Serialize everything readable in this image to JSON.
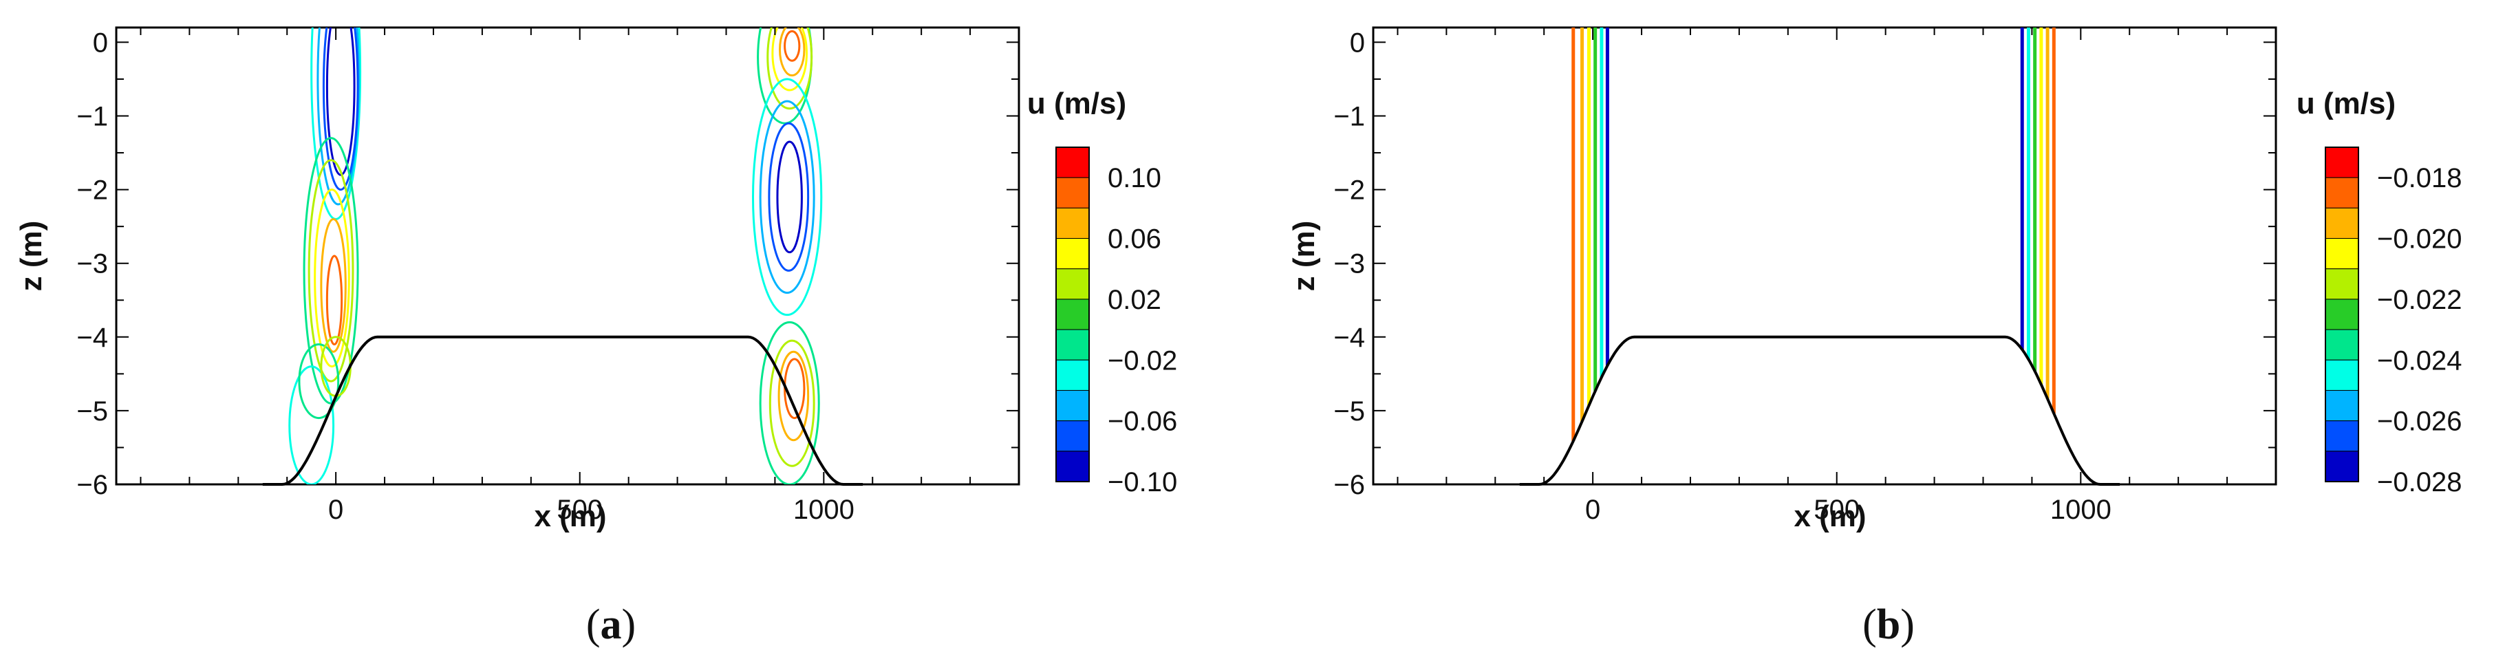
{
  "panels": [
    {
      "caption_open": "(",
      "caption_letter": "a",
      "caption_close": ")",
      "colorbar": {
        "title": "u (m/s)",
        "tick_labels": [
          "0.10",
          "0.06",
          "0.02",
          "−0.02",
          "−0.06",
          "−0.10"
        ]
      }
    },
    {
      "caption_open": "(",
      "caption_letter": "b",
      "caption_close": ")",
      "colorbar": {
        "title": "u (m/s)",
        "tick_labels": [
          "−0.018",
          "−0.020",
          "−0.022",
          "−0.024",
          "−0.026",
          "−0.028"
        ]
      }
    }
  ],
  "colors": {
    "levels": [
      "#0000c8",
      "#0050ff",
      "#00b4ff",
      "#00ffe6",
      "#00e68c",
      "#28cc28",
      "#b4f000",
      "#ffff00",
      "#ffb400",
      "#ff6400",
      "#ff0000"
    ],
    "outline": "#000000",
    "bathymetry": "#000000"
  },
  "chart_data": [
    {
      "type": "contour",
      "xlabel": "x (m)",
      "ylabel": "z (m)",
      "xlim": [
        -450,
        1400
      ],
      "ylim": [
        -6,
        0.2
      ],
      "xticks": [
        0,
        500,
        1000
      ],
      "yticks": [
        0,
        -1,
        -2,
        -3,
        -4,
        -5,
        -6
      ],
      "colorbar_levels": [
        0.1,
        0.06,
        0.02,
        -0.02,
        -0.06,
        -0.1
      ],
      "bathymetry": {
        "crest_depth": -4,
        "crest_x": [
          85,
          845
        ],
        "toe_x": [
          -110,
          1040
        ],
        "base_depth": -6
      },
      "features": [
        {
          "x": 0,
          "z_range": [
            -2.0,
            0
          ],
          "u_min": -0.1,
          "note": "negative core near surface at left slope"
        },
        {
          "x": 0,
          "z_range": [
            -4.0,
            -2.0
          ],
          "u_max": 0.1,
          "note": "positive core at left slope"
        },
        {
          "x": 920,
          "z_range": [
            -1.0,
            0
          ],
          "u_max": 0.1,
          "note": "positive core near surface at right slope"
        },
        {
          "x": 920,
          "z_range": [
            -3.5,
            -1.0
          ],
          "u_min": -0.1,
          "note": "negative core at right slope"
        },
        {
          "x": 920,
          "z_range": [
            -5.5,
            -4.0
          ],
          "u_max": 0.1,
          "note": "positive core near bottom at right slope"
        }
      ]
    },
    {
      "type": "contour",
      "xlabel": "x (m)",
      "ylabel": "z (m)",
      "xlim": [
        -450,
        1400
      ],
      "ylim": [
        -6,
        0.2
      ],
      "xticks": [
        0,
        500,
        1000
      ],
      "yticks": [
        0,
        -1,
        -2,
        -3,
        -4,
        -5,
        -6
      ],
      "colorbar_levels": [
        -0.018,
        -0.02,
        -0.022,
        -0.024,
        -0.026,
        -0.028
      ],
      "bathymetry": {
        "crest_depth": -4,
        "crest_x": [
          85,
          845
        ],
        "toe_x": [
          -110,
          1040
        ],
        "base_depth": -6
      },
      "left_band_x": [
        -40,
        -22,
        -8,
        5,
        18,
        30
      ],
      "right_band_x": [
        880,
        893,
        906,
        919,
        932,
        945
      ]
    }
  ]
}
